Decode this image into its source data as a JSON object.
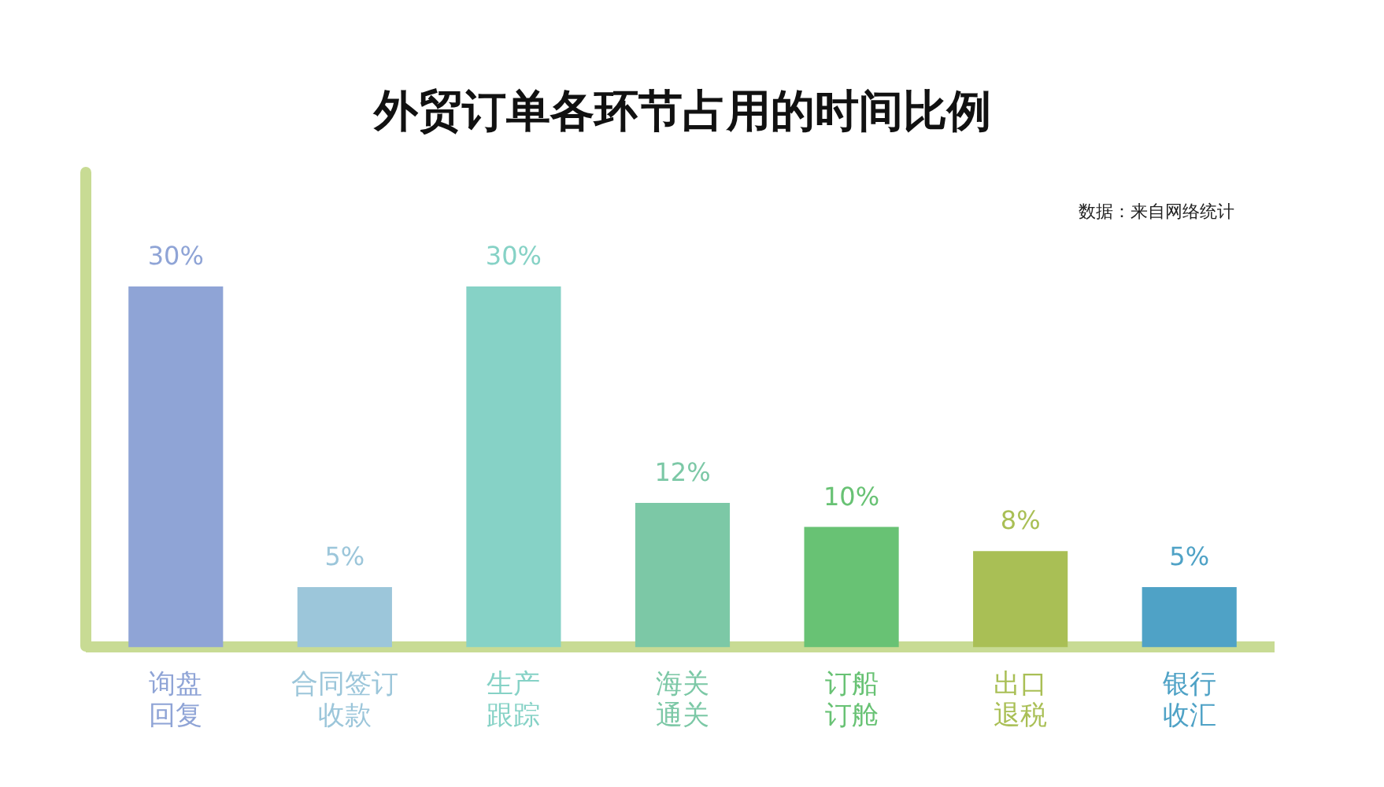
{
  "chart_data": {
    "type": "bar",
    "title": "外贸订单各环节占用的时间比例",
    "categories": [
      "询盘回复",
      "合同签订收款",
      "生产跟踪",
      "海关通关",
      "订船订舱",
      "出口退税",
      "银行收汇"
    ],
    "values": [
      30,
      5,
      30,
      12,
      10,
      8,
      5
    ],
    "colors": [
      "#8fa4d6",
      "#9cc6da",
      "#86d2c6",
      "#7cc8a6",
      "#68c274",
      "#a9bf55",
      "#4fa2c6"
    ],
    "value_labels": [
      "30%",
      "5%",
      "30%",
      "12%",
      "10%",
      "8%",
      "5%"
    ],
    "annotations": [
      "数据：来自网络统计"
    ],
    "grid": false,
    "legend": false,
    "tick_labels": "x"
  }
}
